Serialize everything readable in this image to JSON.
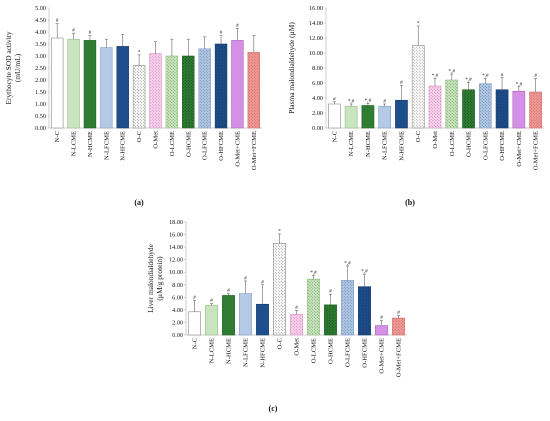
{
  "chart_data": [
    {
      "type": "bar",
      "panel_label": "(a)",
      "ylabel_lines": [
        "Erythocyte SOD activity",
        "(mU/mL)"
      ],
      "ylim": [
        0,
        5
      ],
      "yticks": [
        "0.00",
        "0.50",
        "1.00",
        "1.50",
        "2.00",
        "2.50",
        "3.00",
        "3.50",
        "4.00",
        "4.50",
        "5.00"
      ],
      "categories": [
        "N-C",
        "N-LCME",
        "N-HCME",
        "N-LFCME",
        "N-HFCME",
        "O-C",
        "O-Met",
        "O-LCME",
        "O-HCME",
        "O-LFCME",
        "O-HFCME",
        "O-Met+CME",
        "O-Met+FCME"
      ],
      "values": [
        3.75,
        3.7,
        3.65,
        3.35,
        3.4,
        2.6,
        3.1,
        3.0,
        3.0,
        3.3,
        3.5,
        3.65,
        3.15
      ],
      "errors": [
        0.6,
        0.25,
        0.2,
        0.35,
        0.5,
        0.45,
        0.5,
        0.7,
        0.7,
        0.5,
        0.35,
        0.5,
        0.7
      ],
      "annotations": [
        "#",
        "#",
        "#",
        "",
        "",
        "*",
        "",
        "",
        "",
        "",
        "#",
        "#",
        ""
      ]
    },
    {
      "type": "bar",
      "panel_label": "(b)",
      "ylabel_lines": [
        "Plasma malondialdehyde (µM)"
      ],
      "ylim": [
        0,
        16
      ],
      "yticks": [
        "0.00",
        "2.00",
        "4.00",
        "6.00",
        "8.00",
        "10.00",
        "12.00",
        "14.00",
        "16.00"
      ],
      "categories": [
        "N-C",
        "N-LCME",
        "N-HCME",
        "N-LFCME",
        "N-HFCME",
        "O-C",
        "O-Met",
        "O-LCME",
        "O-HCME",
        "O-LFCME",
        "O-HFCME",
        "O-Met+CME",
        "O-Met+FCME"
      ],
      "values": [
        3.2,
        2.9,
        3.0,
        2.9,
        3.7,
        11.0,
        5.6,
        6.4,
        5.1,
        5.9,
        5.1,
        4.9,
        4.8
      ],
      "errors": [
        0.3,
        0.3,
        0.3,
        0.3,
        2.0,
        2.6,
        1.0,
        0.8,
        1.0,
        0.7,
        1.6,
        0.6,
        1.8
      ],
      "annotations": [
        "#",
        "*,#",
        "*,#",
        "#",
        "#",
        "*",
        "*,#",
        "*,#",
        "*,#",
        "*,#",
        "#",
        "*,#",
        "#"
      ]
    },
    {
      "type": "bar",
      "panel_label": "(c)",
      "ylabel_lines": [
        "Liver malondialdehyde",
        "(µM/g protein)"
      ],
      "ylim": [
        0,
        18
      ],
      "yticks": [
        "0.00",
        "2.00",
        "4.00",
        "6.00",
        "8.00",
        "10.00",
        "12.00",
        "14.00",
        "16.00",
        "18.00"
      ],
      "categories": [
        "N-C",
        "N-LCME",
        "N-HCME",
        "N-LFCME",
        "N-HFCME",
        "O-C",
        "O-Met",
        "O-LCME",
        "O-HCME",
        "O-LFCME",
        "O-HFCME",
        "O-Met+CME",
        "O-Met+FCME"
      ],
      "values": [
        3.7,
        4.7,
        6.3,
        6.6,
        4.9,
        14.6,
        3.3,
        8.9,
        4.8,
        8.7,
        7.7,
        1.5,
        2.7
      ],
      "errors": [
        1.8,
        0.3,
        0.3,
        2.0,
        3.1,
        1.5,
        0.6,
        0.6,
        1.7,
        2.3,
        2.0,
        0.8,
        0.4
      ],
      "annotations": [
        "#",
        "#",
        "#",
        "#",
        "#",
        "*",
        "#",
        "*,#",
        "#",
        "*,#",
        "*,#",
        "#",
        "#"
      ]
    }
  ],
  "series_styles": [
    {
      "fill": "#ffffff",
      "stroke": "#8a8a8a",
      "pattern": "none"
    },
    {
      "fill": "#c9e5bf",
      "stroke": "#8fbf80",
      "pattern": "none"
    },
    {
      "fill": "#2e7d32",
      "stroke": "#1f5f24",
      "pattern": "none"
    },
    {
      "fill": "#b3c9e6",
      "stroke": "#7f9fc8",
      "pattern": "none"
    },
    {
      "fill": "#1f4e8c",
      "stroke": "#163a6a",
      "pattern": "none"
    },
    {
      "fill": "#ffffff",
      "stroke": "#8a8a8a",
      "pattern": "dots",
      "dot": "#7a7a7a"
    },
    {
      "fill": "#fbd3ef",
      "stroke": "#d790c6",
      "pattern": "dots",
      "dot": "#b071a3"
    },
    {
      "fill": "#c9e5bf",
      "stroke": "#8fbf80",
      "pattern": "dots",
      "dot": "#5e9150"
    },
    {
      "fill": "#2e7d32",
      "stroke": "#1f5f24",
      "pattern": "dots",
      "dot": "#0f3f13"
    },
    {
      "fill": "#b3c9e6",
      "stroke": "#7f9fc8",
      "pattern": "dots",
      "dot": "#4d6d9a"
    },
    {
      "fill": "#1f4e8c",
      "stroke": "#163a6a",
      "pattern": "dots",
      "dot": "#0c2a52"
    },
    {
      "fill": "#d68fe6",
      "stroke": "#a866b8",
      "pattern": "none"
    },
    {
      "fill": "#f49a96",
      "stroke": "#cc6f6b",
      "pattern": "dots",
      "dot": "#b35550"
    }
  ]
}
